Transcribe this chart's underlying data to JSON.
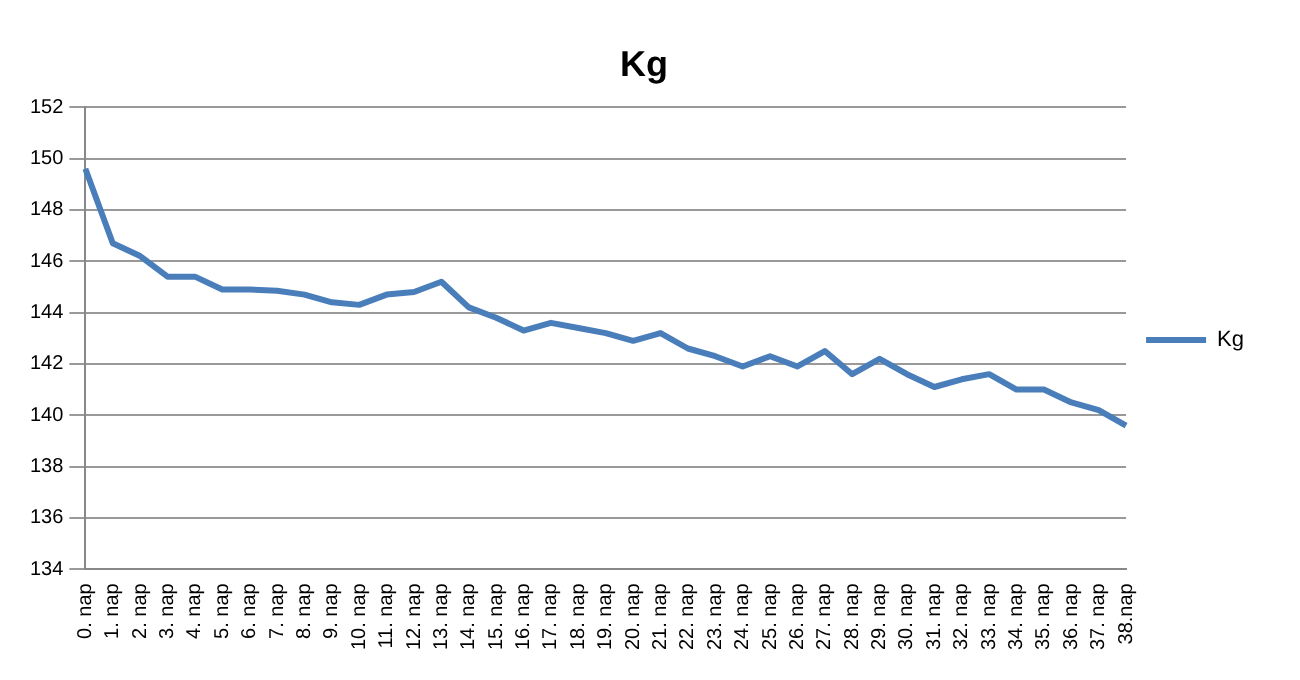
{
  "chart_data": {
    "type": "line",
    "title": "Kg",
    "categories": [
      "0. nap",
      "1. nap",
      "2. nap",
      "3. nap",
      "4. nap",
      "5. nap",
      "6. nap",
      "7. nap",
      "8. nap",
      "9. nap",
      "10. nap",
      "11. nap",
      "12. nap",
      "13. nap",
      "14. nap",
      "15. nap",
      "16. nap",
      "17. nap",
      "18. nap",
      "19. nap",
      "20. nap",
      "21. nap",
      "22. nap",
      "23. nap",
      "24. nap",
      "25. nap",
      "26. nap",
      "27. nap",
      "28. nap",
      "29. nap",
      "30. nap",
      "31. nap",
      "32. nap",
      "33. nap",
      "34. nap",
      "35. nap",
      "36. nap",
      "37. nap",
      "38.nap"
    ],
    "series": [
      {
        "name": "Kg",
        "color": "#4a7ebb",
        "values": [
          149.6,
          146.7,
          146.2,
          145.4,
          145.4,
          144.9,
          144.9,
          144.85,
          144.7,
          144.4,
          144.3,
          144.7,
          144.8,
          145.2,
          144.2,
          143.8,
          143.3,
          143.6,
          143.4,
          143.2,
          142.9,
          143.2,
          142.6,
          142.3,
          141.9,
          142.3,
          141.9,
          142.5,
          141.6,
          142.2,
          141.6,
          141.1,
          141.4,
          141.6,
          141.0,
          141.0,
          140.5,
          140.2,
          139.6
        ]
      }
    ],
    "ylim": [
      134,
      152
    ],
    "yticks": [
      134,
      136,
      138,
      140,
      142,
      144,
      146,
      148,
      150,
      152
    ],
    "grid": "y",
    "legend": "right",
    "marker": "none",
    "line_style": "solid"
  }
}
